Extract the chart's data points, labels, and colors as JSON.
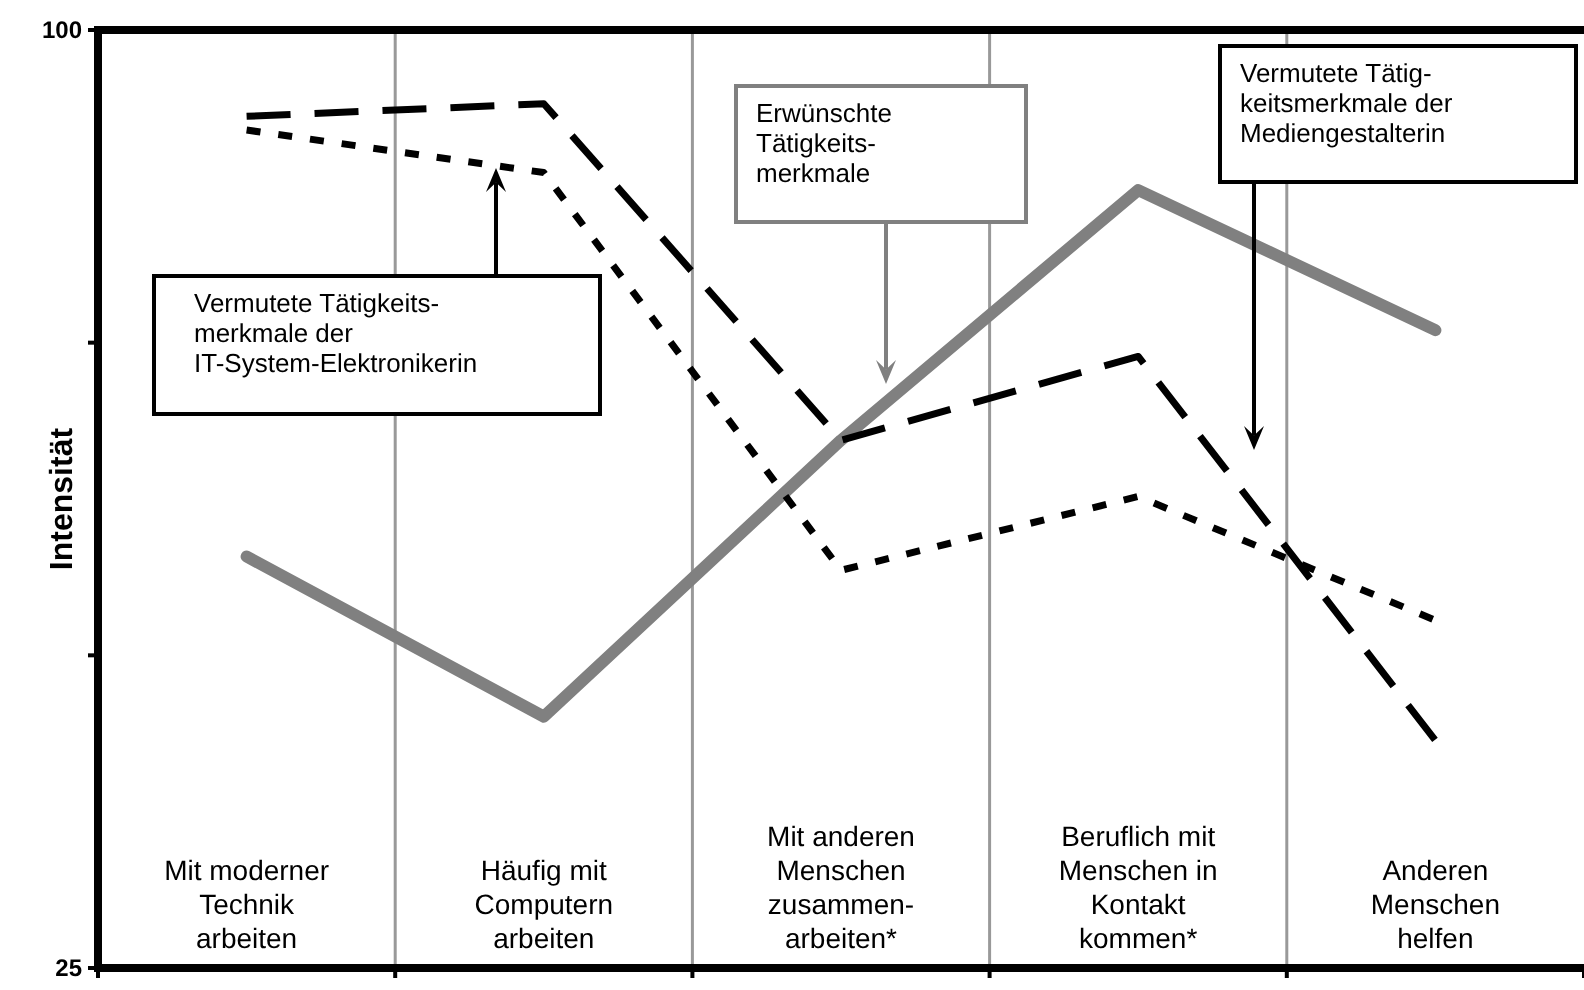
{
  "chart_data": {
    "type": "line",
    "ylabel": "Intensität",
    "categories": [
      "Mit moderner\nTechnik\narbeiten",
      "Häufig mit\nComputern\narbeiten",
      "Mit anderen\nMenschen\nzusammen-\narbeiten*",
      "Beruflich mit\nMenschen in\nKontakt\nkommen*",
      "Anderen\nMenschen\nhelfen"
    ],
    "series": [
      {
        "color": "#808080",
        "line_style": "solid",
        "values": [
          57.9,
          45.1,
          67.2,
          87.2,
          76
        ]
      },
      {
        "color": "#000000",
        "line_style": "dashed",
        "values": [
          93.1,
          94.1,
          67.2,
          73.9,
          43.2
        ]
      },
      {
        "color": "#000000",
        "line_style": "dotted",
        "values": [
          92,
          88.6,
          56.8,
          62.7,
          52.8
        ]
      }
    ],
    "ylim": [
      25,
      100
    ],
    "yticks": [
      25,
      {
        "value": 50,
        "label": null
      },
      {
        "value": 75,
        "label": null
      },
      100
    ],
    "grid": "x",
    "marker": "none",
    "annotations": [
      "Vermutete Tätigkeits-\nmerkmale der\nIT-System-Elektronikerin",
      "Erwünschte\nTätigkeits-\nmerkmale",
      "Vermutete Tätig-\nkeitsmerkmale der\nMediengestalterin"
    ]
  }
}
